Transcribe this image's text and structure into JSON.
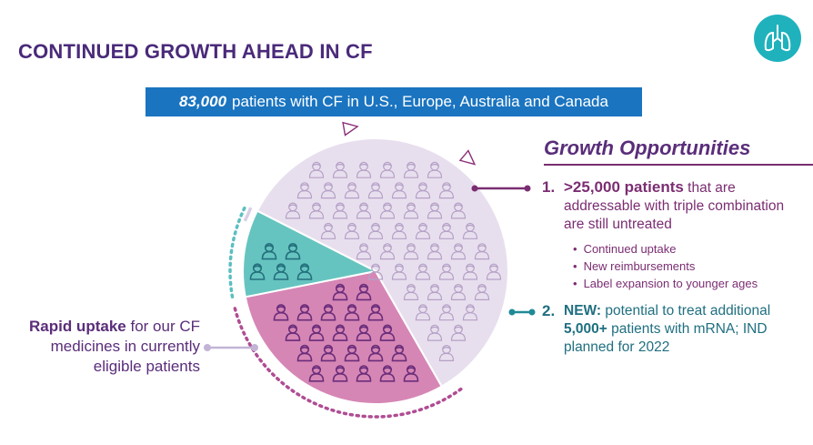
{
  "title": "CONTINUED GROWTH AHEAD IN CF",
  "logo": {
    "icon": "lungs-icon",
    "color": "#1fb2bd"
  },
  "banner": {
    "bold": "83,000",
    "rest": "patients with CF in U.S., Europe, Australia and Canada"
  },
  "growth": {
    "heading": "Growth Opportunities",
    "item1": {
      "num": "1.",
      "lead": ">25,000 patients",
      "rest": "that are addressable with triple combination are still untreated",
      "bullets": [
        "Continued uptake",
        "New reimbursements",
        "Label expansion to younger ages"
      ]
    },
    "item2": {
      "num": "2.",
      "lead": "NEW:",
      "text1": "potential to treat additional",
      "strong": "5,000+",
      "text2": "patients with mRNA; IND planned for 2022"
    }
  },
  "left": {
    "bold": "Rapid uptake",
    "rest": "for our CF medicines in currently eligible patients"
  },
  "chart_data": {
    "type": "pie",
    "total_label": "83,000",
    "slices": [
      {
        "name": "Rapid uptake for our CF medicines in currently eligible patients",
        "share": 0.592,
        "color": "#e8dfee",
        "icon_color": "#b4a0c6"
      },
      {
        "name": ">25,000 patients that are addressable with triple combination are still untreated",
        "share": 0.302,
        "color": "#d686b5",
        "icon_color": "#6a2d7a"
      },
      {
        "name": "5,000+ patients with mRNA",
        "share": 0.106,
        "color": "#66c4c0",
        "icon_color": "#236f7c"
      }
    ]
  },
  "colors": {
    "title": "#4a2a7a",
    "banner": "#1a74c0",
    "growth_purple": "#7b2d72",
    "teal_text": "#1f6f80",
    "ring": "#d9cfe5"
  }
}
